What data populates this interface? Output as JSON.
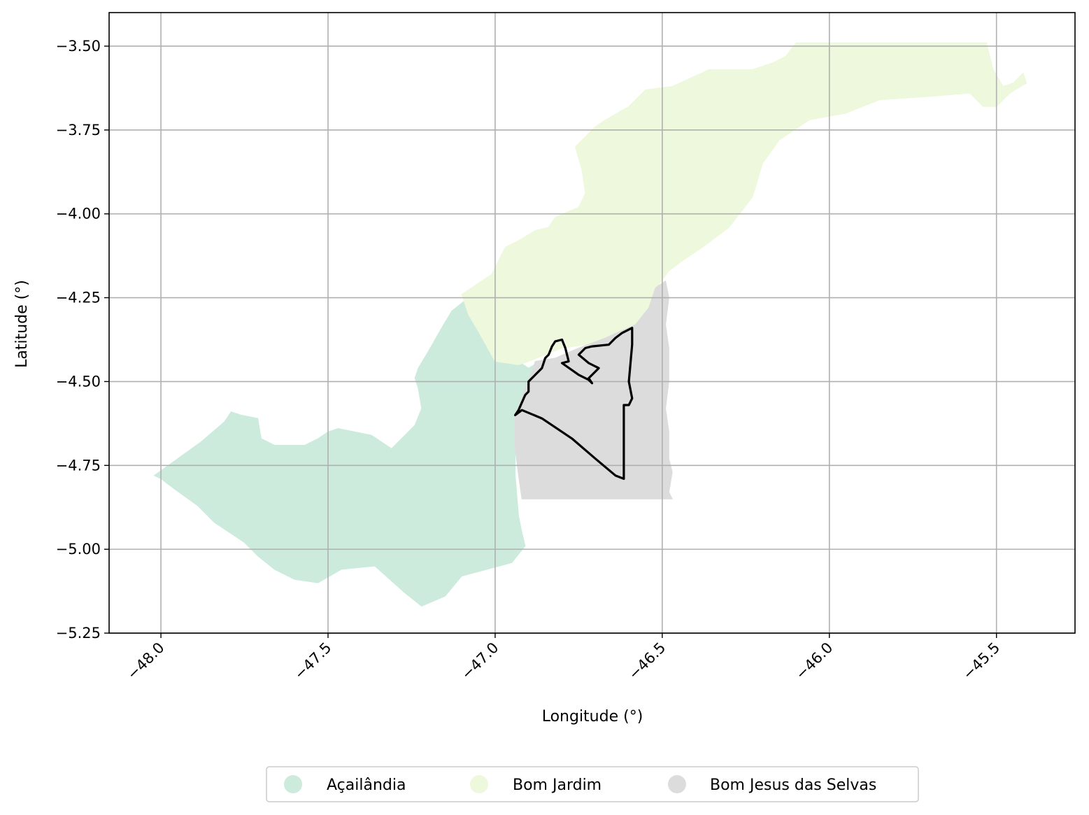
{
  "chart_data": {
    "type": "map",
    "xlabel": "Longitude (°)",
    "ylabel": "Latitude (°)",
    "xlim": [
      -48.155,
      -45.265
    ],
    "ylim": [
      -5.25,
      -3.4
    ],
    "x_ticks": [
      -48.0,
      -47.5,
      -47.0,
      -46.5,
      -46.0,
      -45.5
    ],
    "x_tick_labels": [
      "−48.0",
      "−47.5",
      "−47.0",
      "−46.5",
      "−46.0",
      "−45.5"
    ],
    "y_ticks": [
      -3.5,
      -3.75,
      -4.0,
      -4.25,
      -4.5,
      -4.75,
      -5.0,
      -5.25
    ],
    "y_tick_labels": [
      "−3.50",
      "−3.75",
      "−4.00",
      "−4.25",
      "−4.50",
      "−4.75",
      "−5.00",
      "−5.25"
    ],
    "grid": true,
    "legend_placement": "bottom-center",
    "regions": [
      {
        "name": "Açailândia",
        "color": "#cdebdd",
        "boundary": [
          [
            -48.02,
            -4.78
          ],
          [
            -47.88,
            -4.68
          ],
          [
            -47.81,
            -4.62
          ],
          [
            -47.79,
            -4.59
          ],
          [
            -47.76,
            -4.6
          ],
          [
            -47.71,
            -4.61
          ],
          [
            -47.7,
            -4.67
          ],
          [
            -47.66,
            -4.69
          ],
          [
            -47.57,
            -4.69
          ],
          [
            -47.53,
            -4.67
          ],
          [
            -47.5,
            -4.65
          ],
          [
            -47.47,
            -4.64
          ],
          [
            -47.37,
            -4.66
          ],
          [
            -47.31,
            -4.7
          ],
          [
            -47.26,
            -4.65
          ],
          [
            -47.24,
            -4.63
          ],
          [
            -47.22,
            -4.58
          ],
          [
            -47.23,
            -4.52
          ],
          [
            -47.24,
            -4.49
          ],
          [
            -47.23,
            -4.46
          ],
          [
            -47.2,
            -4.41
          ],
          [
            -47.16,
            -4.34
          ],
          [
            -47.13,
            -4.29
          ],
          [
            -47.08,
            -4.25
          ],
          [
            -47.04,
            -4.33
          ],
          [
            -46.99,
            -4.42
          ],
          [
            -46.93,
            -4.44
          ],
          [
            -46.9,
            -4.46
          ],
          [
            -46.85,
            -4.43
          ],
          [
            -46.82,
            -4.44
          ],
          [
            -46.87,
            -4.47
          ],
          [
            -46.92,
            -4.55
          ],
          [
            -46.94,
            -4.61
          ],
          [
            -46.94,
            -4.78
          ],
          [
            -46.93,
            -4.9
          ],
          [
            -46.92,
            -4.95
          ],
          [
            -46.91,
            -4.99
          ],
          [
            -46.95,
            -5.04
          ],
          [
            -47.1,
            -5.08
          ],
          [
            -47.15,
            -5.14
          ],
          [
            -47.22,
            -5.17
          ],
          [
            -47.27,
            -5.13
          ],
          [
            -47.36,
            -5.05
          ],
          [
            -47.46,
            -5.06
          ],
          [
            -47.53,
            -5.1
          ],
          [
            -47.6,
            -5.09
          ],
          [
            -47.66,
            -5.06
          ],
          [
            -47.71,
            -5.02
          ],
          [
            -47.75,
            -4.98
          ],
          [
            -47.84,
            -4.92
          ],
          [
            -47.89,
            -4.87
          ],
          [
            -47.96,
            -4.82
          ],
          [
            -48.0,
            -4.79
          ]
        ]
      },
      {
        "name": "Bom Jardim",
        "color": "#edf8dc",
        "boundary": [
          [
            -47.1,
            -4.24
          ],
          [
            -47.07,
            -4.22
          ],
          [
            -47.01,
            -4.18
          ],
          [
            -46.97,
            -4.1
          ],
          [
            -46.93,
            -4.08
          ],
          [
            -46.88,
            -4.05
          ],
          [
            -46.84,
            -4.04
          ],
          [
            -46.82,
            -4.01
          ],
          [
            -46.75,
            -3.98
          ],
          [
            -46.73,
            -3.94
          ],
          [
            -46.74,
            -3.87
          ],
          [
            -46.76,
            -3.8
          ],
          [
            -46.73,
            -3.77
          ],
          [
            -46.7,
            -3.74
          ],
          [
            -46.67,
            -3.72
          ],
          [
            -46.6,
            -3.68
          ],
          [
            -46.55,
            -3.63
          ],
          [
            -46.47,
            -3.62
          ],
          [
            -46.36,
            -3.57
          ],
          [
            -46.23,
            -3.57
          ],
          [
            -46.17,
            -3.55
          ],
          [
            -46.13,
            -3.53
          ],
          [
            -46.1,
            -3.49
          ],
          [
            -45.88,
            -3.49
          ],
          [
            -45.75,
            -3.49
          ],
          [
            -45.66,
            -3.49
          ],
          [
            -45.53,
            -3.49
          ],
          [
            -45.51,
            -3.57
          ],
          [
            -45.48,
            -3.62
          ],
          [
            -45.45,
            -3.61
          ],
          [
            -45.42,
            -3.58
          ],
          [
            -45.41,
            -3.61
          ],
          [
            -45.46,
            -3.64
          ],
          [
            -45.5,
            -3.68
          ],
          [
            -45.54,
            -3.68
          ],
          [
            -45.58,
            -3.64
          ],
          [
            -45.7,
            -3.65
          ],
          [
            -45.85,
            -3.66
          ],
          [
            -45.95,
            -3.7
          ],
          [
            -46.06,
            -3.72
          ],
          [
            -46.15,
            -3.78
          ],
          [
            -46.2,
            -3.85
          ],
          [
            -46.23,
            -3.95
          ],
          [
            -46.3,
            -4.04
          ],
          [
            -46.38,
            -4.1
          ],
          [
            -46.44,
            -4.14
          ],
          [
            -46.48,
            -4.17
          ],
          [
            -46.51,
            -4.21
          ],
          [
            -46.54,
            -4.28
          ],
          [
            -46.59,
            -4.34
          ],
          [
            -46.66,
            -4.37
          ],
          [
            -46.73,
            -4.39
          ],
          [
            -46.8,
            -4.4
          ],
          [
            -46.9,
            -4.44
          ],
          [
            -46.93,
            -4.45
          ],
          [
            -47.0,
            -4.44
          ],
          [
            -47.05,
            -4.35
          ],
          [
            -47.08,
            -4.3
          ]
        ]
      },
      {
        "name": "Bom Jesus das Selvas",
        "color": "#dcdcdc",
        "boundary": [
          [
            -46.88,
            -4.44
          ],
          [
            -46.82,
            -4.43
          ],
          [
            -46.75,
            -4.4
          ],
          [
            -46.67,
            -4.37
          ],
          [
            -46.58,
            -4.33
          ],
          [
            -46.54,
            -4.28
          ],
          [
            -46.52,
            -4.22
          ],
          [
            -46.49,
            -4.2
          ],
          [
            -46.48,
            -4.25
          ],
          [
            -46.49,
            -4.33
          ],
          [
            -46.48,
            -4.4
          ],
          [
            -46.48,
            -4.5
          ],
          [
            -46.49,
            -4.58
          ],
          [
            -46.48,
            -4.65
          ],
          [
            -46.48,
            -4.73
          ],
          [
            -46.47,
            -4.77
          ],
          [
            -46.48,
            -4.83
          ],
          [
            -46.47,
            -4.85
          ],
          [
            -46.65,
            -4.85
          ],
          [
            -46.8,
            -4.85
          ],
          [
            -46.92,
            -4.85
          ],
          [
            -46.93,
            -4.78
          ],
          [
            -46.94,
            -4.7
          ],
          [
            -46.94,
            -4.61
          ],
          [
            -46.91,
            -4.52
          ],
          [
            -46.89,
            -4.47
          ]
        ]
      }
    ],
    "outline": {
      "color": "#000000",
      "path": [
        [
          -46.59,
          -4.34
        ],
        [
          -46.59,
          -4.39
        ],
        [
          -46.6,
          -4.5
        ],
        [
          -46.59,
          -4.55
        ],
        [
          -46.6,
          -4.57
        ],
        [
          -46.615,
          -4.57
        ],
        [
          -46.615,
          -4.62
        ],
        [
          -46.615,
          -4.79
        ],
        [
          -46.64,
          -4.78
        ],
        [
          -46.7,
          -4.73
        ],
        [
          -46.77,
          -4.67
        ],
        [
          -46.8,
          -4.65
        ],
        [
          -46.86,
          -4.61
        ],
        [
          -46.92,
          -4.585
        ],
        [
          -46.94,
          -4.6
        ],
        [
          -46.93,
          -4.585
        ],
        [
          -46.91,
          -4.54
        ],
        [
          -46.9,
          -4.53
        ],
        [
          -46.9,
          -4.5
        ],
        [
          -46.88,
          -4.48
        ],
        [
          -46.86,
          -4.46
        ],
        [
          -46.85,
          -4.43
        ],
        [
          -46.84,
          -4.42
        ],
        [
          -46.83,
          -4.395
        ],
        [
          -46.82,
          -4.38
        ],
        [
          -46.8,
          -4.375
        ],
        [
          -46.79,
          -4.4
        ],
        [
          -46.78,
          -4.44
        ],
        [
          -46.8,
          -4.445
        ],
        [
          -46.75,
          -4.48
        ],
        [
          -46.72,
          -4.495
        ],
        [
          -46.71,
          -4.505
        ],
        [
          -46.72,
          -4.49
        ],
        [
          -46.69,
          -4.46
        ],
        [
          -46.72,
          -4.445
        ],
        [
          -46.75,
          -4.42
        ],
        [
          -46.73,
          -4.4
        ],
        [
          -46.71,
          -4.395
        ],
        [
          -46.66,
          -4.39
        ],
        [
          -46.64,
          -4.37
        ],
        [
          -46.62,
          -4.355
        ],
        [
          -46.59,
          -4.34
        ]
      ]
    },
    "legend": [
      {
        "label": "Açailândia",
        "color": "#cdebdd"
      },
      {
        "label": "Bom Jardim",
        "color": "#edf8dc"
      },
      {
        "label": "Bom Jesus das Selvas",
        "color": "#dcdcdc"
      }
    ]
  }
}
